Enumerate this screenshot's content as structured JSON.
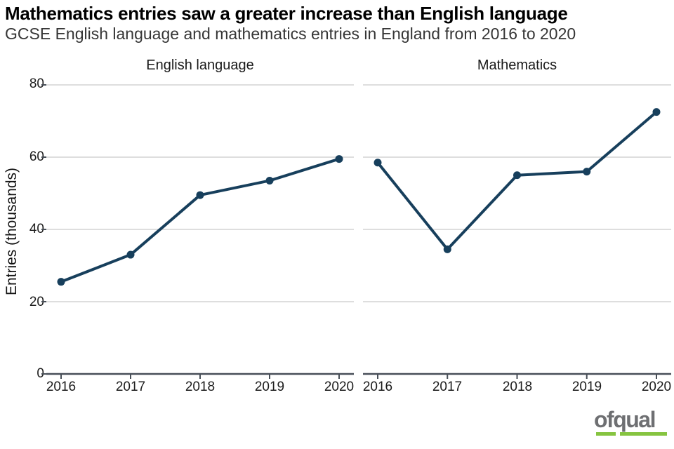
{
  "title": "Mathematics entries saw a greater increase than English language",
  "subtitle": "GCSE English language and mathematics entries in England from 2016 to 2020",
  "chart_data": {
    "type": "line",
    "layout": "two side-by-side facet panels sharing one y axis",
    "x": [
      "2016",
      "2017",
      "2018",
      "2019",
      "2020"
    ],
    "series": [
      {
        "name": "English language",
        "values": [
          25.5,
          33,
          49.5,
          53.5,
          59.5
        ]
      },
      {
        "name": "Mathematics",
        "values": [
          58.5,
          34.5,
          55,
          56,
          72.5
        ]
      }
    ],
    "ylabel": "Entries (thousands)",
    "xlabel": "",
    "ylim": [
      0,
      80
    ],
    "y_ticks": [
      0,
      20,
      40,
      60,
      80
    ],
    "y_tick_labels_top_to_bottom": [
      "80",
      "60",
      "40",
      "20",
      "0"
    ],
    "grid": "horizontal gridlines only",
    "legend": "none",
    "line_color": "#173f5c",
    "point_color": "#173f5c",
    "grid_color": "#dedede",
    "axis_color": "#484f58"
  },
  "logo": {
    "text": "ofqual",
    "text_color": "#6e6f72",
    "underline_color": "#86c440"
  }
}
